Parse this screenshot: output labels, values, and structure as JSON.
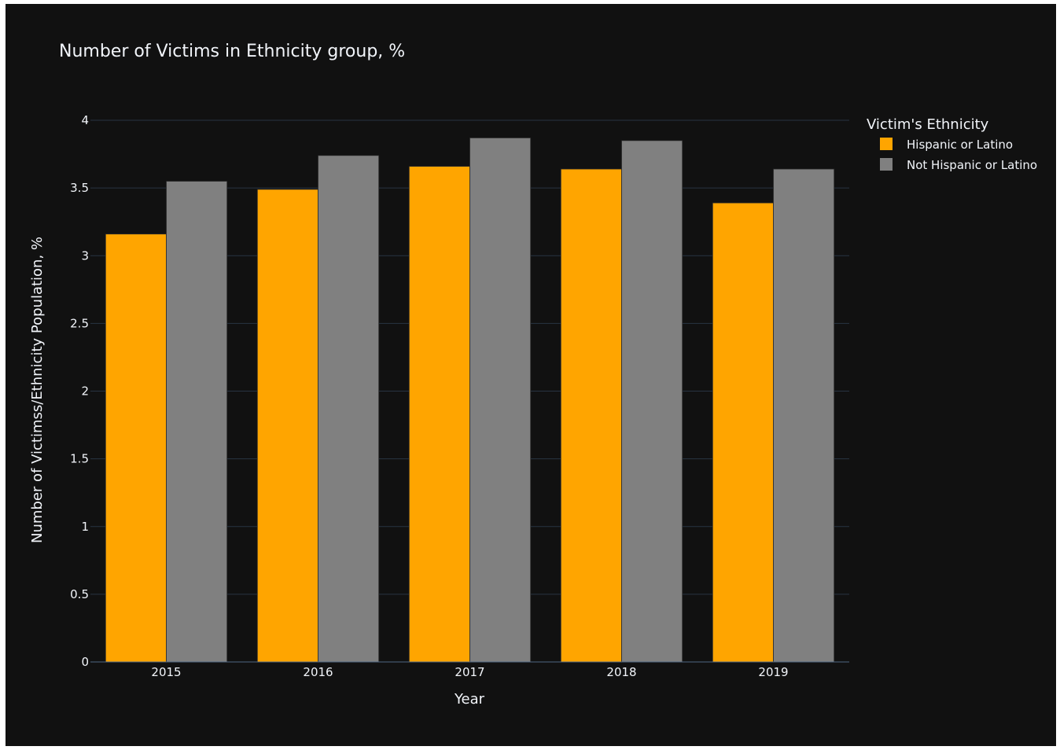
{
  "chart_data": {
    "type": "bar",
    "title": "Number of Victims in Ethnicity group, %",
    "xlabel": "Year",
    "ylabel": "Number of Victimss/Ethnicity Population, %",
    "categories": [
      "2015",
      "2016",
      "2017",
      "2018",
      "2019"
    ],
    "y_ticks": [
      "0",
      "0.5",
      "1",
      "1.5",
      "2",
      "2.5",
      "3",
      "3.5",
      "4"
    ],
    "ylim": [
      0,
      4
    ],
    "grid": true,
    "legend": {
      "title": "Victim's Ethnicity",
      "placement": "top-right"
    },
    "series": [
      {
        "name": "Hispanic or Latino",
        "color": "#FFA500",
        "values": [
          3.16,
          3.49,
          3.66,
          3.64,
          3.39
        ]
      },
      {
        "name": "Not Hispanic or Latino",
        "color": "#808080",
        "values": [
          3.55,
          3.74,
          3.87,
          3.85,
          3.64
        ]
      }
    ]
  }
}
